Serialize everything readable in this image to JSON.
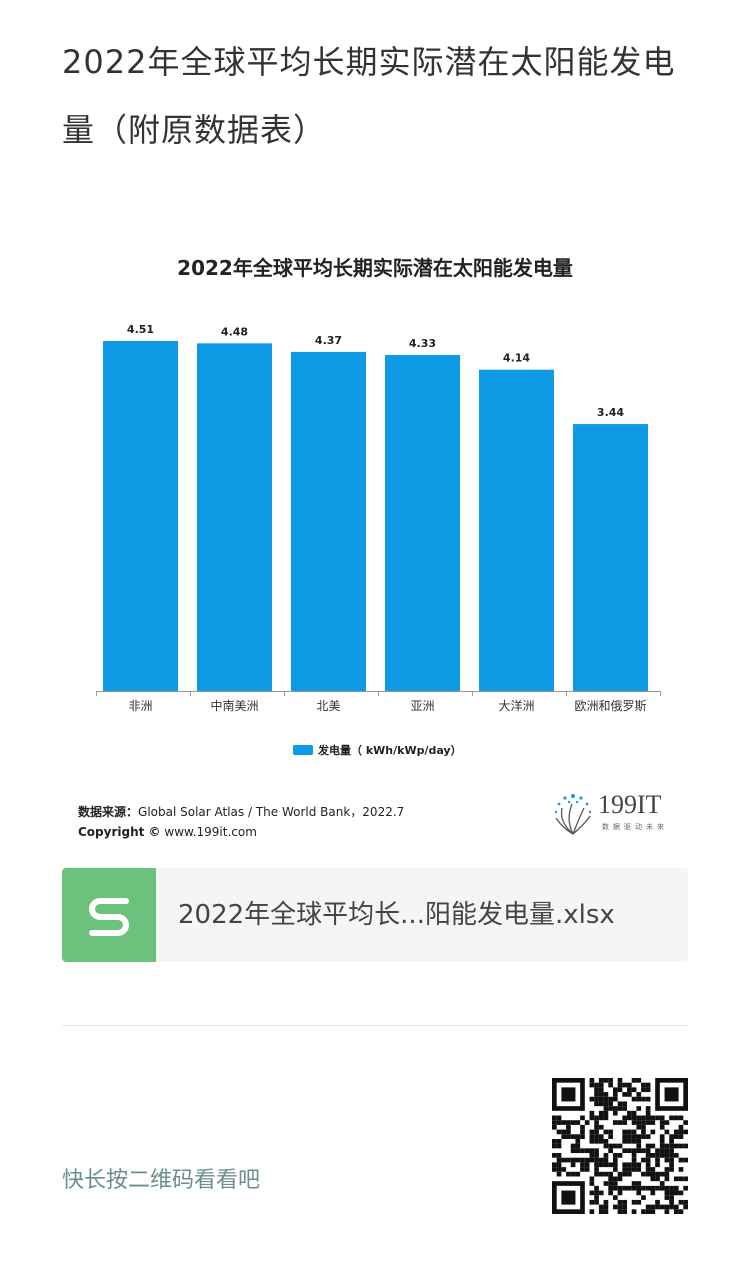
{
  "article": {
    "title": "2022年全球平均长期实际潜在太阳能发电量（附原数据表）"
  },
  "chart_data": {
    "type": "bar",
    "title": "2022年全球平均长期实际潜在太阳能发电量",
    "categories": [
      "非洲",
      "中南美洲",
      "北美",
      "亚洲",
      "大洋洲",
      "欧洲和俄罗斯"
    ],
    "series": [
      {
        "name": "发电量（ kWh/kWp/day）",
        "values": [
          4.51,
          4.48,
          4.37,
          4.33,
          4.14,
          3.44
        ],
        "color": "#0e9ae4"
      }
    ],
    "value_labels": [
      "4.51",
      "4.48",
      "4.37",
      "4.33",
      "4.14",
      "3.44"
    ],
    "ylim": [
      0,
      5
    ],
    "grid": false,
    "legend_position": "bottom"
  },
  "source": {
    "label": "数据来源：",
    "text": "Global Solar Atlas / The World Bank，2022.7",
    "copyright_label": "Copyright ©",
    "copyright_text": "www.199it.com"
  },
  "logo": {
    "text": "199IT",
    "subtitle": "数据驱动未来",
    "icon": "dandelion-logo-icon"
  },
  "attachment": {
    "filename": "2022年全球平均长...阳能发电量.xlsx",
    "icon": "spreadsheet-s-icon",
    "icon_color": "#6cc17d"
  },
  "qr": {
    "label": "快长按二维码看看吧",
    "icon": "qr-code-icon"
  }
}
